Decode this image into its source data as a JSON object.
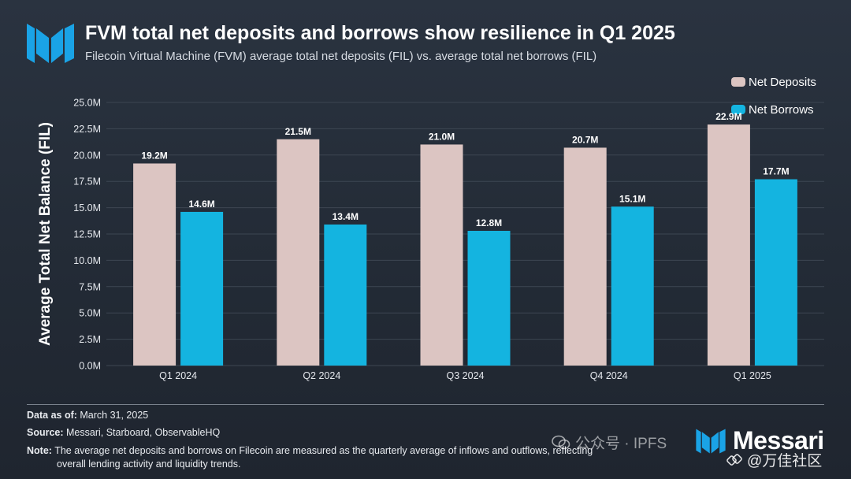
{
  "header": {
    "title": "FVM total net deposits and borrows show resilience in Q1 2025",
    "subtitle": "Filecoin Virtual Machine (FVM) average total net deposits (FIL) vs. average total net borrows (FIL)"
  },
  "colors": {
    "deposits": "#dcc5c2",
    "borrows": "#14b4e0",
    "accent": "#1aa3e6",
    "gridline": "#3d4652"
  },
  "chart_data": {
    "type": "bar",
    "title": "FVM total net deposits and borrows show resilience in Q1 2025",
    "subtitle": "Filecoin Virtual Machine (FVM) average total net deposits (FIL) vs. average total net borrows (FIL)",
    "xlabel": "",
    "ylabel": "Average Total Net Balance (FIL)",
    "ylim": [
      0,
      25000000
    ],
    "y_ticks": [
      "0.0M",
      "2.5M",
      "5.0M",
      "7.5M",
      "10.0M",
      "12.5M",
      "15.0M",
      "17.5M",
      "20.0M",
      "22.5M",
      "25.0M"
    ],
    "grid": true,
    "legend_position": "top-right",
    "categories": [
      "Q1 2024",
      "Q2 2024",
      "Q3 2024",
      "Q4 2024",
      "Q1 2025"
    ],
    "series": [
      {
        "name": "Net Deposits",
        "values": [
          19200000,
          21500000,
          21000000,
          20700000,
          22900000
        ],
        "labels": [
          "19.2M",
          "21.5M",
          "21.0M",
          "20.7M",
          "22.9M"
        ]
      },
      {
        "name": "Net Borrows",
        "values": [
          14600000,
          13400000,
          12800000,
          15100000,
          17700000
        ],
        "labels": [
          "14.6M",
          "13.4M",
          "12.8M",
          "15.1M",
          "17.7M"
        ]
      }
    ]
  },
  "footer": {
    "data_as_of_label": "Data as of:",
    "data_as_of_value": " March 31, 2025",
    "source_label": "Source:",
    "source_value": " Messari, Starboard, ObservableHQ",
    "note_label": "Note:",
    "note_line1": " The average net deposits and borrows on Filecoin are measured as the quarterly average of inflows and outflows, reflecting",
    "note_line2": "overall lending activity and liquidity trends."
  },
  "brand": {
    "name": "Messari"
  },
  "watermarks": {
    "line1": "公众号 · IPFS",
    "line2": "@万佳社区",
    "icons": [
      "wechat-icon",
      "chain-icon"
    ]
  }
}
